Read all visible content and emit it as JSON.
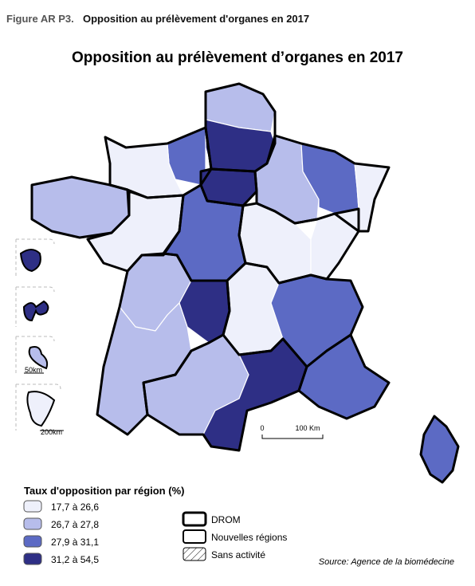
{
  "header": {
    "label": "Figure AR P3.",
    "title": "Opposition au prélèvement d'organes en 2017"
  },
  "map": {
    "title": "Opposition au prélèvement d’organes en 2017",
    "scale": {
      "zero": "0",
      "distance": "100 Km"
    },
    "insets": [
      "50km",
      "200km"
    ]
  },
  "legend": {
    "title": "Taux d'opposition par région (%)",
    "classes": [
      "17,7 à 26,6",
      "26,7 à 27,8",
      "27,9 à 31,1",
      "31,2 à 54,5"
    ],
    "symbols": [
      "DROM",
      "Nouvelles régions",
      "Sans activité"
    ]
  },
  "source": "Source: Agence de la biomédecine"
}
